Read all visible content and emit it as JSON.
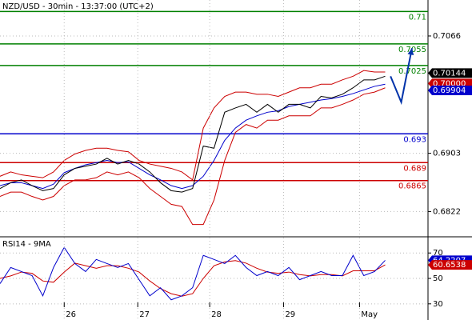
{
  "chart_data": [
    {
      "type": "line",
      "title": "NZD/USD - 30min - 13:37:00 (UTC+2)",
      "x": [
        0,
        4,
        8,
        12,
        16,
        20,
        24,
        28,
        32,
        36,
        40,
        44,
        48,
        52,
        56,
        60,
        64,
        68,
        72,
        76,
        80,
        84,
        88,
        92,
        96,
        100,
        104,
        108,
        112,
        116,
        120,
        124,
        128,
        132,
        136,
        140,
        144
      ],
      "series": [
        {
          "color": "#cc0000",
          "values": [
            0.6871,
            0.6877,
            0.6873,
            0.6871,
            0.6869,
            0.6877,
            0.6893,
            0.6902,
            0.6907,
            0.691,
            0.691,
            0.6907,
            0.6905,
            0.6893,
            0.6888,
            0.6885,
            0.6882,
            0.6877,
            0.6866,
            0.6938,
            0.6966,
            0.6982,
            0.6988,
            0.6988,
            0.6985,
            0.6985,
            0.6982,
            0.6988,
            0.6994,
            0.6994,
            0.6999,
            0.6999,
            0.7005,
            0.701,
            0.7018,
            0.7016,
            0.7016
          ]
        },
        {
          "color": "#cc0000",
          "values": [
            0.6843,
            0.6849,
            0.6849,
            0.6843,
            0.6838,
            0.6843,
            0.6858,
            0.6866,
            0.6866,
            0.6869,
            0.6877,
            0.6873,
            0.6877,
            0.6869,
            0.6854,
            0.6843,
            0.6832,
            0.6829,
            0.6804,
            0.6804,
            0.6838,
            0.6893,
            0.6932,
            0.6943,
            0.6938,
            0.6949,
            0.6949,
            0.6955,
            0.6955,
            0.6955,
            0.6966,
            0.6966,
            0.6971,
            0.6977,
            0.6985,
            0.6988,
            0.6994
          ]
        },
        {
          "color": "#0000cc",
          "values": [
            0.6858,
            0.6862,
            0.6862,
            0.6858,
            0.6854,
            0.686,
            0.6876,
            0.6882,
            0.6887,
            0.689,
            0.6893,
            0.689,
            0.6891,
            0.6882,
            0.6873,
            0.6866,
            0.6858,
            0.6854,
            0.6858,
            0.6871,
            0.6893,
            0.6921,
            0.6938,
            0.6949,
            0.6955,
            0.696,
            0.6962,
            0.6968,
            0.6971,
            0.6974,
            0.6977,
            0.6979,
            0.6982,
            0.6986,
            0.6991,
            0.6996,
            0.6999
          ]
        },
        {
          "color": "#000000",
          "values": [
            0.6854,
            0.6862,
            0.6866,
            0.6858,
            0.6851,
            0.6854,
            0.6873,
            0.6882,
            0.6885,
            0.6888,
            0.6896,
            0.6888,
            0.6893,
            0.6888,
            0.6877,
            0.6862,
            0.6851,
            0.6849,
            0.6854,
            0.6913,
            0.691,
            0.696,
            0.6966,
            0.6971,
            0.696,
            0.6971,
            0.696,
            0.6971,
            0.6971,
            0.6966,
            0.6982,
            0.698,
            0.6985,
            0.6994,
            0.7005,
            0.7005,
            0.701
          ]
        }
      ],
      "levels": [
        {
          "value": 0.71,
          "color": "#008000"
        },
        {
          "value": 0.7055,
          "color": "#008000"
        },
        {
          "value": 0.7025,
          "color": "#008000"
        },
        {
          "value": 0.693,
          "color": "#0000cc"
        },
        {
          "value": 0.689,
          "color": "#cc0000"
        },
        {
          "value": 0.6865,
          "color": "#cc0000"
        }
      ],
      "forecast": {
        "x": [
          146,
          150,
          154
        ],
        "values": [
          0.701,
          0.6974,
          0.7049
        ],
        "color": "#0033aa"
      },
      "markers": [
        {
          "value": 0.70144,
          "label": "0.70144",
          "color": "#000000"
        },
        {
          "value": 0.7,
          "label": "0.70000",
          "color": "#cc0000"
        },
        {
          "value": 0.69904,
          "label": "0.69904",
          "color": "#0000cc"
        }
      ],
      "xlim": [
        0,
        160
      ],
      "ylim": [
        0.6788,
        0.7116
      ],
      "yticks": [
        0.7066,
        0.6903,
        0.6822
      ],
      "grid": true
    },
    {
      "type": "line",
      "title": "RSI14 - 9MA",
      "x": [
        0,
        4,
        8,
        12,
        16,
        20,
        24,
        28,
        32,
        36,
        40,
        44,
        48,
        52,
        56,
        60,
        64,
        68,
        72,
        76,
        80,
        84,
        88,
        92,
        96,
        100,
        104,
        108,
        112,
        116,
        120,
        124,
        128,
        132,
        136,
        140,
        144
      ],
      "series": [
        {
          "color": "#cc0000",
          "values": [
            50,
            52,
            55,
            54,
            48,
            47,
            55,
            62,
            60,
            58,
            60,
            60,
            58,
            55,
            48,
            42,
            38,
            36,
            38,
            50,
            60,
            63,
            64,
            62,
            58,
            55,
            54,
            55,
            53,
            52,
            53,
            53,
            52,
            56,
            56,
            56,
            60.7
          ]
        },
        {
          "color": "#0000cc",
          "values": [
            45.9,
            58.6,
            55.4,
            52.2,
            36.3,
            58.6,
            74.4,
            61.7,
            55.4,
            64.9,
            61.7,
            58.6,
            61.7,
            49.0,
            36.3,
            42.7,
            33.2,
            36.3,
            42.7,
            68.1,
            64.9,
            61.7,
            68.1,
            58.6,
            52.2,
            55.4,
            52.2,
            58.6,
            49.0,
            52.2,
            55.4,
            52.2,
            52.2,
            68.1,
            52.2,
            55.4,
            64.2
          ]
        }
      ],
      "markers": [
        {
          "value": 64.2207,
          "label": "64.2207",
          "color": "#0000cc"
        },
        {
          "value": 60.6538,
          "label": "60.6538",
          "color": "#cc0000"
        }
      ],
      "xlim": [
        0,
        160
      ],
      "ylim": [
        17.3,
        82.1
      ],
      "yticks": [
        70,
        50,
        30
      ],
      "xticks": [
        {
          "value": 24,
          "label": "26"
        },
        {
          "value": 51.5,
          "label": "27"
        },
        {
          "value": 78.4,
          "label": "28"
        },
        {
          "value": 106,
          "label": "29"
        },
        {
          "value": 134.4,
          "label": "May"
        }
      ],
      "grid": true
    }
  ]
}
